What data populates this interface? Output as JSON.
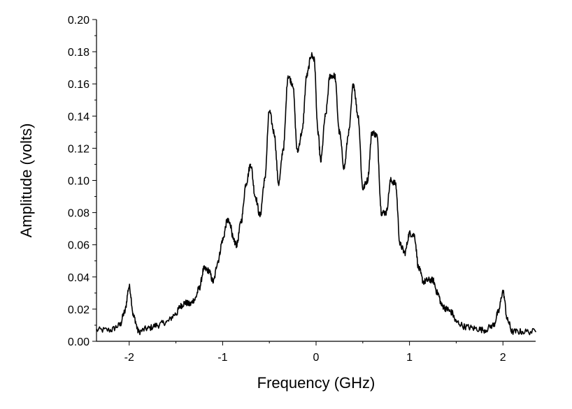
{
  "chart_data": {
    "type": "line",
    "title": "",
    "xlabel": "Frequency (GHz)",
    "ylabel": "Amplitude (volts)",
    "xlim": [
      -2.35,
      2.35
    ],
    "ylim": [
      0.0,
      0.2
    ],
    "grid": false,
    "legend": "none",
    "x_ticks": [
      -2,
      -1,
      0,
      1,
      2
    ],
    "x_tick_labels": [
      "-2",
      "-1",
      "0",
      "1",
      "2"
    ],
    "y_ticks": [
      0.0,
      0.02,
      0.04,
      0.06,
      0.08,
      0.1,
      0.12,
      0.14,
      0.16,
      0.18,
      0.2
    ],
    "y_tick_labels": [
      "0.00",
      "0.02",
      "0.04",
      "0.06",
      "0.08",
      "0.10",
      "0.12",
      "0.14",
      "0.16",
      "0.18",
      "0.20"
    ],
    "series": [
      {
        "color": "#000000",
        "x": [
          -2.35,
          -2.2,
          -2.1,
          -2.05,
          -2.0,
          -1.95,
          -1.9,
          -1.8,
          -1.7,
          -1.6,
          -1.5,
          -1.45,
          -1.4,
          -1.35,
          -1.3,
          -1.25,
          -1.2,
          -1.15,
          -1.1,
          -1.05,
          -1.0,
          -0.95,
          -0.92,
          -0.88,
          -0.85,
          -0.8,
          -0.75,
          -0.7,
          -0.65,
          -0.6,
          -0.55,
          -0.5,
          -0.45,
          -0.4,
          -0.35,
          -0.3,
          -0.25,
          -0.2,
          -0.15,
          -0.1,
          -0.05,
          -0.02,
          0.02,
          0.05,
          0.1,
          0.15,
          0.2,
          0.25,
          0.3,
          0.35,
          0.4,
          0.45,
          0.5,
          0.55,
          0.6,
          0.65,
          0.7,
          0.75,
          0.8,
          0.85,
          0.9,
          0.95,
          1.0,
          1.05,
          1.1,
          1.15,
          1.2,
          1.25,
          1.3,
          1.35,
          1.4,
          1.45,
          1.5,
          1.6,
          1.7,
          1.8,
          1.9,
          1.95,
          2.0,
          2.05,
          2.1,
          2.2,
          2.35
        ],
        "values": [
          0.007,
          0.007,
          0.01,
          0.018,
          0.034,
          0.015,
          0.006,
          0.008,
          0.01,
          0.012,
          0.017,
          0.022,
          0.024,
          0.023,
          0.026,
          0.033,
          0.045,
          0.044,
          0.037,
          0.05,
          0.063,
          0.075,
          0.073,
          0.062,
          0.06,
          0.075,
          0.098,
          0.11,
          0.09,
          0.078,
          0.1,
          0.143,
          0.13,
          0.098,
          0.12,
          0.165,
          0.16,
          0.118,
          0.13,
          0.165,
          0.178,
          0.175,
          0.13,
          0.112,
          0.14,
          0.165,
          0.165,
          0.13,
          0.108,
          0.13,
          0.16,
          0.14,
          0.095,
          0.1,
          0.13,
          0.128,
          0.08,
          0.08,
          0.1,
          0.098,
          0.06,
          0.055,
          0.067,
          0.066,
          0.045,
          0.037,
          0.038,
          0.038,
          0.03,
          0.022,
          0.02,
          0.018,
          0.012,
          0.009,
          0.008,
          0.007,
          0.01,
          0.018,
          0.031,
          0.013,
          0.006,
          0.006,
          0.006
        ]
      }
    ]
  }
}
